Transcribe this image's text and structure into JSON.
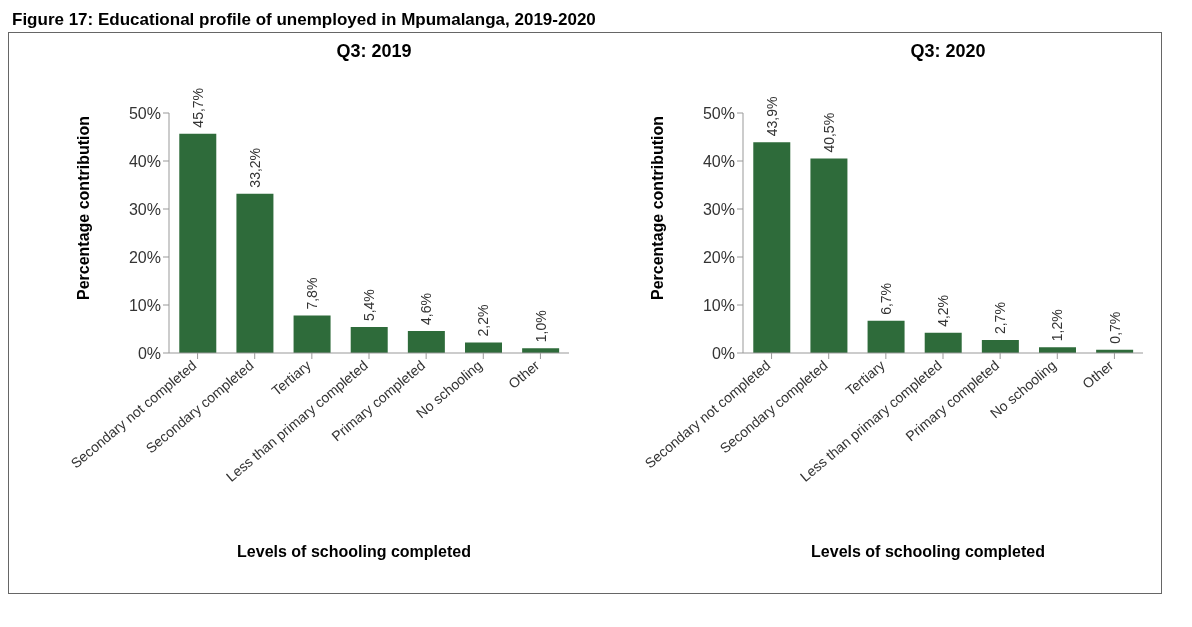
{
  "chart_data": [
    {
      "type": "bar",
      "title": "Q3: 2019",
      "annotations": [
        "Figure 17: Educational profile of unemployed in Mpumalanga, 2019-2020"
      ],
      "xlabel": "Levels of schooling completed",
      "ylabel": "Percentage contribution",
      "categories": [
        "Secondary not completed",
        "Secondary completed",
        "Tertiary",
        "Less than primary completed",
        "Primary completed",
        "No schooling",
        "Other"
      ],
      "values": [
        45.7,
        33.2,
        7.8,
        5.4,
        4.6,
        2.2,
        1.0
      ],
      "value_labels": [
        "45,7%",
        "33,2%",
        "7,8%",
        "5,4%",
        "4,6%",
        "2,2%",
        "1,0%"
      ],
      "color": "#2e6b3a",
      "ylim": [
        0,
        50
      ],
      "yticks": [
        {
          "value": 0,
          "label": "0%"
        },
        {
          "value": 10,
          "label": "10%"
        },
        {
          "value": 20,
          "label": "20%"
        },
        {
          "value": 30,
          "label": "30%"
        },
        {
          "value": 40,
          "label": "40%"
        },
        {
          "value": 50,
          "label": "50%"
        }
      ]
    },
    {
      "type": "bar",
      "title": "Q3: 2020",
      "xlabel": "Levels of schooling completed",
      "ylabel": "Percentage contribution",
      "categories": [
        "Secondary not completed",
        "Secondary completed",
        "Tertiary",
        "Less than primary completed",
        "Primary completed",
        "No schooling",
        "Other"
      ],
      "values": [
        43.9,
        40.5,
        6.7,
        4.2,
        2.7,
        1.2,
        0.7
      ],
      "value_labels": [
        "43,9%",
        "40,5%",
        "6,7%",
        "4,2%",
        "2,7%",
        "1,2%",
        "0,7%"
      ],
      "color": "#2e6b3a",
      "ylim": [
        0,
        50
      ],
      "yticks": [
        {
          "value": 0,
          "label": "0%"
        },
        {
          "value": 10,
          "label": "10%"
        },
        {
          "value": 20,
          "label": "20%"
        },
        {
          "value": 30,
          "label": "30%"
        },
        {
          "value": 40,
          "label": "40%"
        },
        {
          "value": 50,
          "label": "50%"
        }
      ]
    }
  ]
}
